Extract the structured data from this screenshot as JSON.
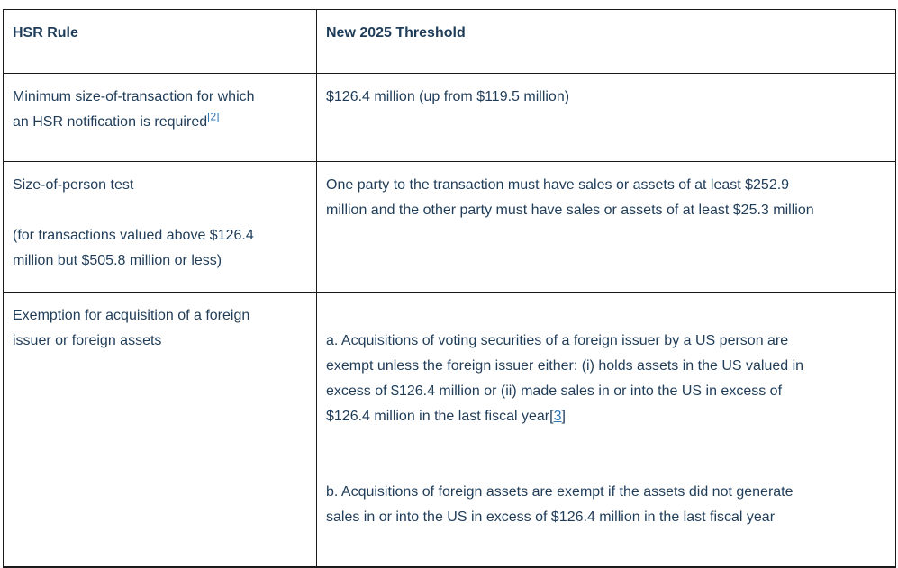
{
  "colors": {
    "text": "#1f3c58",
    "link": "#2e75b5",
    "border": "#1a1a1a",
    "background": "#ffffff"
  },
  "table": {
    "headers": {
      "rule": "HSR Rule",
      "threshold": "New 2025 Threshold"
    },
    "rows": [
      {
        "rule": {
          "text": "Minimum size-of-transaction for which\nan HSR notification is required",
          "footnote_label": "[2]"
        },
        "threshold": {
          "text": "$126.4 million (up from $119.5 million)"
        }
      },
      {
        "rule": {
          "text": "Size-of-person test\n\n(for transactions valued above $126.4\nmillion but $505.8 million or less)"
        },
        "threshold": {
          "text": "One party to the transaction must have sales or assets of at least $252.9\nmillion and the other party must have sales or assets of at least $25.3 million"
        }
      },
      {
        "rule": {
          "text": "Exemption for acquisition of a foreign\nissuer or foreign assets"
        },
        "threshold": {
          "para_a_text": "a. Acquisitions of voting securities of a foreign issuer by a US person are\nexempt unless the foreign issuer either: (i) holds assets in the US valued in\nexcess of $126.4 million or (ii) made sales in or into the US in excess of\n$126.4 million in the last fiscal year",
          "footnote_bracket_open": "[",
          "footnote_number": "3",
          "footnote_bracket_close": "]",
          "para_b_text": "b. Acquisitions of foreign assets are exempt if the assets did not generate\nsales in or into the US in excess of $126.4 million in the last fiscal year"
        }
      }
    ]
  }
}
